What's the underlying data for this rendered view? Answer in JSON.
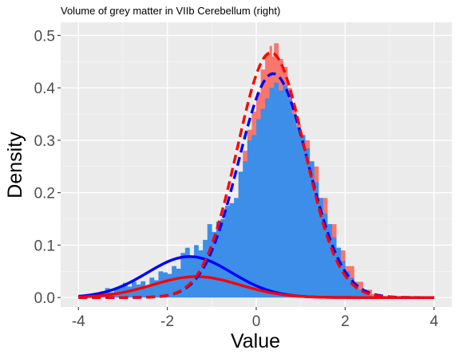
{
  "chart_data": {
    "type": "histogram",
    "title": "Volume of grey matter in VIIb Cerebellum (right)",
    "xlabel": "Value",
    "ylabel": "Density",
    "xlim": [
      -4.4,
      4.4
    ],
    "ylim": [
      -0.018,
      0.525
    ],
    "x_ticks": [
      -4,
      -2,
      0,
      2,
      4
    ],
    "y_ticks": [
      0.0,
      0.1,
      0.2,
      0.3,
      0.4,
      0.5
    ],
    "y_tick_labels": [
      "0.0",
      "0.1",
      "0.2",
      "0.3",
      "0.4",
      "0.5"
    ],
    "grid": true,
    "legend": "none",
    "background": "#ebebeb",
    "histograms": [
      {
        "name": "",
        "color": "#f8766d",
        "bins": [
          [
            -3.4,
            0.006
          ],
          [
            -3.2,
            0.01
          ],
          [
            -3.0,
            0.014
          ],
          [
            -2.8,
            0.017
          ],
          [
            -2.6,
            0.022
          ],
          [
            -2.4,
            0.028
          ],
          [
            -2.2,
            0.033
          ],
          [
            -2.0,
            0.038
          ],
          [
            -1.8,
            0.044
          ],
          [
            -1.6,
            0.05
          ],
          [
            -1.4,
            0.062
          ],
          [
            -1.2,
            0.08
          ],
          [
            -1.0,
            0.1
          ],
          [
            -0.8,
            0.128
          ],
          [
            -0.6,
            0.175
          ],
          [
            -0.4,
            0.23
          ],
          [
            -0.3,
            0.28
          ],
          [
            -0.2,
            0.32
          ],
          [
            -0.1,
            0.355
          ],
          [
            0.0,
            0.39
          ],
          [
            0.1,
            0.435
          ],
          [
            0.2,
            0.465
          ],
          [
            0.3,
            0.48
          ],
          [
            0.35,
            0.46
          ],
          [
            0.4,
            0.485
          ],
          [
            0.5,
            0.455
          ],
          [
            0.6,
            0.44
          ],
          [
            0.7,
            0.4
          ],
          [
            0.8,
            0.365
          ],
          [
            0.9,
            0.33
          ],
          [
            1.0,
            0.3
          ],
          [
            1.2,
            0.25
          ],
          [
            1.4,
            0.19
          ],
          [
            1.6,
            0.14
          ],
          [
            1.8,
            0.09
          ],
          [
            2.0,
            0.06
          ],
          [
            2.2,
            0.03
          ],
          [
            2.4,
            0.015
          ],
          [
            2.6,
            0.007
          ],
          [
            2.8,
            0.003
          ]
        ]
      },
      {
        "name": "",
        "color": "#3c8ee8",
        "bins": [
          [
            -3.5,
            0.012
          ],
          [
            -3.4,
            0.018
          ],
          [
            -3.3,
            0.01
          ],
          [
            -3.2,
            0.016
          ],
          [
            -3.1,
            0.022
          ],
          [
            -3.0,
            0.028
          ],
          [
            -2.9,
            0.021
          ],
          [
            -2.8,
            0.03
          ],
          [
            -2.7,
            0.025
          ],
          [
            -2.6,
            0.031
          ],
          [
            -2.5,
            0.022
          ],
          [
            -2.4,
            0.038
          ],
          [
            -2.3,
            0.033
          ],
          [
            -2.2,
            0.05
          ],
          [
            -2.1,
            0.048
          ],
          [
            -2.0,
            0.045
          ],
          [
            -1.9,
            0.06
          ],
          [
            -1.8,
            0.055
          ],
          [
            -1.7,
            0.085
          ],
          [
            -1.6,
            0.095
          ],
          [
            -1.5,
            0.08
          ],
          [
            -1.4,
            0.1
          ],
          [
            -1.3,
            0.09
          ],
          [
            -1.2,
            0.11
          ],
          [
            -1.1,
            0.14
          ],
          [
            -1.0,
            0.125
          ],
          [
            -0.9,
            0.145
          ],
          [
            -0.8,
            0.15
          ],
          [
            -0.7,
            0.175
          ],
          [
            -0.6,
            0.18
          ],
          [
            -0.5,
            0.19
          ],
          [
            -0.4,
            0.24
          ],
          [
            -0.3,
            0.26
          ],
          [
            -0.2,
            0.3
          ],
          [
            -0.1,
            0.31
          ],
          [
            0.0,
            0.34
          ],
          [
            0.1,
            0.36
          ],
          [
            0.2,
            0.38
          ],
          [
            0.3,
            0.4
          ],
          [
            0.4,
            0.41
          ],
          [
            0.5,
            0.395
          ],
          [
            0.6,
            0.405
          ],
          [
            0.7,
            0.38
          ],
          [
            0.8,
            0.35
          ],
          [
            0.9,
            0.325
          ],
          [
            1.0,
            0.31
          ],
          [
            1.1,
            0.285
          ],
          [
            1.2,
            0.26
          ],
          [
            1.3,
            0.22
          ],
          [
            1.4,
            0.19
          ],
          [
            1.5,
            0.16
          ],
          [
            1.6,
            0.14
          ],
          [
            1.7,
            0.115
          ],
          [
            1.8,
            0.095
          ],
          [
            1.9,
            0.07
          ],
          [
            2.0,
            0.05
          ],
          [
            2.1,
            0.038
          ],
          [
            2.2,
            0.025
          ],
          [
            2.3,
            0.015
          ],
          [
            2.4,
            0.008
          ],
          [
            2.5,
            0.004
          ],
          [
            2.6,
            0.002
          ]
        ]
      }
    ],
    "curves": [
      {
        "name": "",
        "color": "#0000ff",
        "style": "solid",
        "mean": -1.5,
        "sd": 0.95,
        "weight": 0.186
      },
      {
        "name": "",
        "color": "#ff0000",
        "style": "solid",
        "mean": -1.35,
        "sd": 0.98,
        "weight": 0.098
      },
      {
        "name": "",
        "color": "#0000ff",
        "style": "dashed",
        "mean": 0.38,
        "sd": 0.78,
        "weight": 0.835
      },
      {
        "name": "",
        "color": "#ff0000",
        "style": "dashed",
        "mean": 0.33,
        "sd": 0.76,
        "weight": 0.89
      }
    ],
    "curve_range": [
      -4,
      4
    ]
  }
}
